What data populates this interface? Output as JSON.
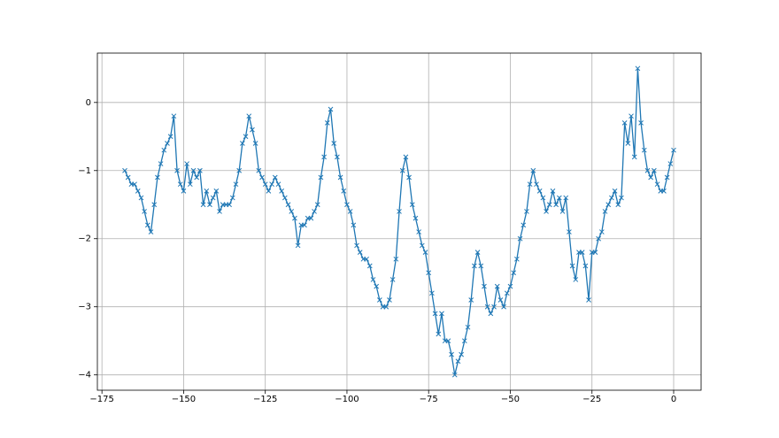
{
  "chart_data": {
    "type": "line",
    "marker": "x",
    "color": "#1f77b4",
    "grid": true,
    "x": [
      -168,
      -167,
      -166,
      -165,
      -164,
      -163,
      -162,
      -161,
      -160,
      -159,
      -158,
      -157,
      -156,
      -155,
      -154,
      -153,
      -152,
      -151,
      -150,
      -149,
      -148,
      -147,
      -146,
      -145,
      -144,
      -143,
      -142,
      -141,
      -140,
      -139,
      -138,
      -137,
      -136,
      -135,
      -134,
      -133,
      -132,
      -131,
      -130,
      -129,
      -128,
      -127,
      -126,
      -125,
      -124,
      -123,
      -122,
      -121,
      -120,
      -119,
      -118,
      -117,
      -116,
      -115,
      -114,
      -113,
      -112,
      -111,
      -110,
      -109,
      -108,
      -107,
      -106,
      -105,
      -104,
      -103,
      -102,
      -101,
      -100,
      -99,
      -98,
      -97,
      -96,
      -95,
      -94,
      -93,
      -92,
      -91,
      -90,
      -89,
      -88,
      -87,
      -86,
      -85,
      -84,
      -83,
      -82,
      -81,
      -80,
      -79,
      -78,
      -77,
      -76,
      -75,
      -74,
      -73,
      -72,
      -71,
      -70,
      -69,
      -68,
      -67,
      -66,
      -65,
      -64,
      -63,
      -62,
      -61,
      -60,
      -59,
      -58,
      -57,
      -56,
      -55,
      -54,
      -53,
      -52,
      -51,
      -50,
      -49,
      -48,
      -47,
      -46,
      -45,
      -44,
      -43,
      -42,
      -41,
      -40,
      -39,
      -38,
      -37,
      -36,
      -35,
      -34,
      -33,
      -32,
      -31,
      -30,
      -29,
      -28,
      -27,
      -26,
      -25,
      -24,
      -23,
      -22,
      -21,
      -20,
      -19,
      -18,
      -17,
      -16,
      -15,
      -14,
      -13,
      -12,
      -11,
      -10,
      -9,
      -8,
      -7,
      -6,
      -5,
      -4,
      -3,
      -2,
      -1,
      0
    ],
    "values": [
      -1.0,
      -1.1,
      -1.2,
      -1.2,
      -1.3,
      -1.4,
      -1.6,
      -1.8,
      -1.9,
      -1.5,
      -1.1,
      -0.9,
      -0.7,
      -0.6,
      -0.5,
      -0.2,
      -1.0,
      -1.2,
      -1.3,
      -0.9,
      -1.2,
      -1.0,
      -1.1,
      -1.0,
      -1.5,
      -1.3,
      -1.5,
      -1.4,
      -1.3,
      -1.6,
      -1.5,
      -1.5,
      -1.5,
      -1.4,
      -1.2,
      -1.0,
      -0.6,
      -0.5,
      -0.2,
      -0.4,
      -0.6,
      -1.0,
      -1.1,
      -1.2,
      -1.3,
      -1.2,
      -1.1,
      -1.2,
      -1.3,
      -1.4,
      -1.5,
      -1.6,
      -1.7,
      -2.1,
      -1.8,
      -1.8,
      -1.7,
      -1.7,
      -1.6,
      -1.5,
      -1.1,
      -0.8,
      -0.3,
      -0.1,
      -0.6,
      -0.8,
      -1.1,
      -1.3,
      -1.5,
      -1.6,
      -1.8,
      -2.1,
      -2.2,
      -2.3,
      -2.3,
      -2.4,
      -2.6,
      -2.7,
      -2.9,
      -3.0,
      -3.0,
      -2.9,
      -2.6,
      -2.3,
      -1.6,
      -1.0,
      -0.8,
      -1.1,
      -1.5,
      -1.7,
      -1.9,
      -2.1,
      -2.2,
      -2.5,
      -2.8,
      -3.1,
      -3.4,
      -3.1,
      -3.5,
      -3.5,
      -3.7,
      -4.0,
      -3.8,
      -3.7,
      -3.5,
      -3.3,
      -2.9,
      -2.4,
      -2.2,
      -2.4,
      -2.7,
      -3.0,
      -3.1,
      -3.0,
      -2.7,
      -2.9,
      -3.0,
      -2.8,
      -2.7,
      -2.5,
      -2.3,
      -2.0,
      -1.8,
      -1.6,
      -1.2,
      -1.0,
      -1.2,
      -1.3,
      -1.4,
      -1.6,
      -1.5,
      -1.3,
      -1.5,
      -1.4,
      -1.6,
      -1.4,
      -1.9,
      -2.4,
      -2.6,
      -2.2,
      -2.2,
      -2.4,
      -2.9,
      -2.2,
      -2.2,
      -2.0,
      -1.9,
      -1.6,
      -1.5,
      -1.4,
      -1.3,
      -1.5,
      -1.4,
      -0.3,
      -0.6,
      -0.2,
      -0.8,
      0.5,
      -0.3,
      -0.7,
      -1.0,
      -1.1,
      -1.0,
      -1.2,
      -1.3,
      -1.3,
      -1.1,
      -0.9,
      -0.7
    ],
    "xlim": [
      -176.4,
      8.4
    ],
    "ylim": [
      -4.225,
      0.725
    ],
    "xticks": [
      {
        "value": -175,
        "label": "−175"
      },
      {
        "value": -150,
        "label": "−150"
      },
      {
        "value": -125,
        "label": "−125"
      },
      {
        "value": -100,
        "label": "−100"
      },
      {
        "value": -75,
        "label": "−75"
      },
      {
        "value": -50,
        "label": "−50"
      },
      {
        "value": -25,
        "label": "−25"
      },
      0
    ],
    "yticks": [
      {
        "value": -4,
        "label": "−4"
      },
      {
        "value": -3,
        "label": "−3"
      },
      {
        "value": -2,
        "label": "−2"
      },
      {
        "value": -1,
        "label": "−1"
      },
      0
    ]
  }
}
